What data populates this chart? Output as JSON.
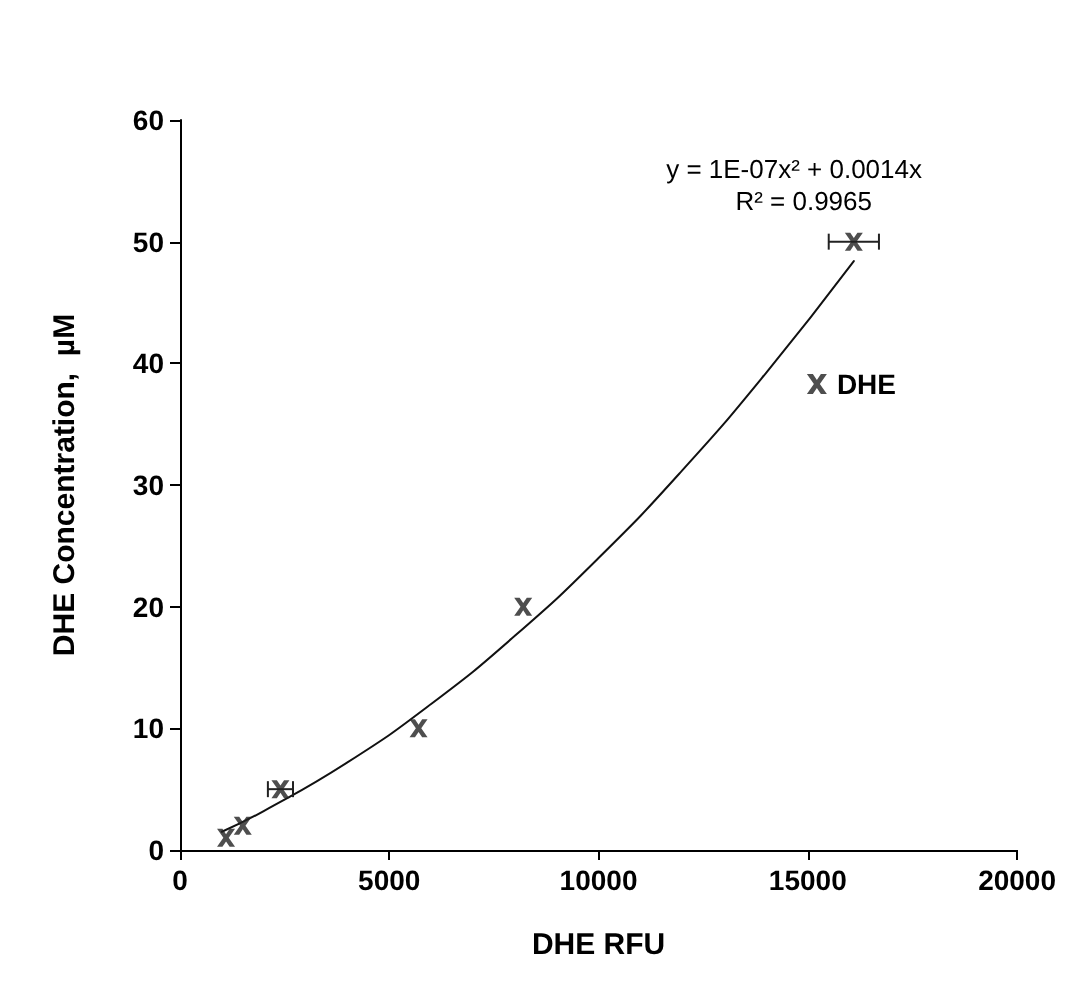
{
  "chart_data": {
    "type": "scatter",
    "xlabel": "DHE RFU",
    "ylabel": "DHE Concentration,  µM",
    "series": [
      {
        "name": "DHE",
        "marker": "cross",
        "color": "#222222",
        "x": [
          1100,
          1500,
          2400,
          5700,
          8200,
          16100
        ],
        "values": [
          1,
          2,
          5,
          10,
          20,
          50
        ],
        "xerrors": [
          null,
          null,
          300,
          null,
          null,
          600
        ]
      },
      {
        "type": "line",
        "marker": "none",
        "color": "#111111",
        "x": [
          1000,
          2000,
          4000,
          6000,
          8000,
          10000,
          12000,
          14000,
          16100
        ],
        "values": [
          1.5,
          3.2,
          7.2,
          12,
          17.6,
          24,
          31.2,
          39.2,
          48.4
        ]
      }
    ],
    "annotations": [
      "y = 1E-07x² + 0.0014x",
      "R² = 0.9965"
    ],
    "xlim": [
      0,
      20000
    ],
    "xticks": [
      0,
      5000,
      10000,
      15000,
      20000
    ],
    "ylim": [
      0,
      60
    ],
    "yticks": [
      0,
      10,
      20,
      30,
      40,
      50,
      60
    ],
    "grid": false,
    "legend": "right",
    "line_style": "solid"
  }
}
